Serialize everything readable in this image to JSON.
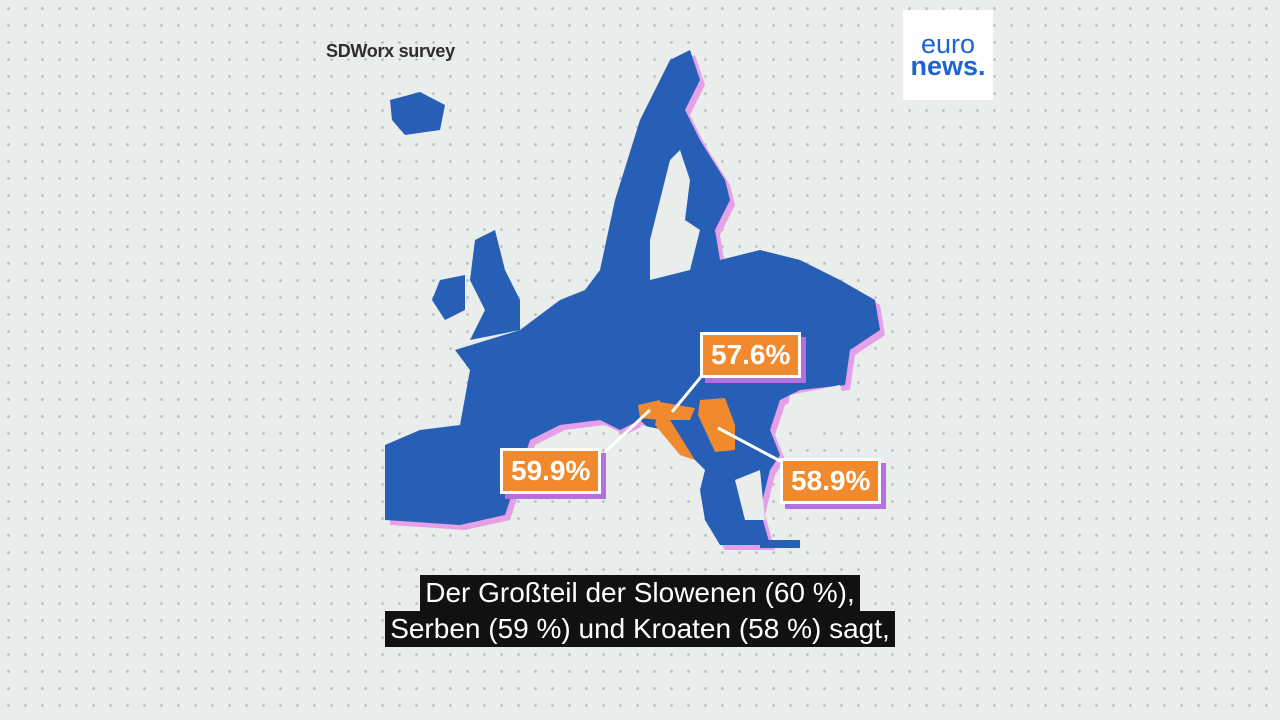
{
  "title": "SDWorx survey",
  "logo": {
    "line1": "euro",
    "line2": "news."
  },
  "colors": {
    "land": "#265fb5",
    "highlight": "#f18a2e",
    "shadow": "#e6a0e8",
    "background": "#e9edeb"
  },
  "labels": [
    {
      "country": "Croatia",
      "value": "57.6%"
    },
    {
      "country": "Slovenia",
      "value": "59.9%"
    },
    {
      "country": "Serbia",
      "value": "58.9%"
    }
  ],
  "subtitles": [
    "Der Großteil der Slowenen (60 %),",
    "Serben (59 %) und Kroaten (58 %) sagt,"
  ]
}
